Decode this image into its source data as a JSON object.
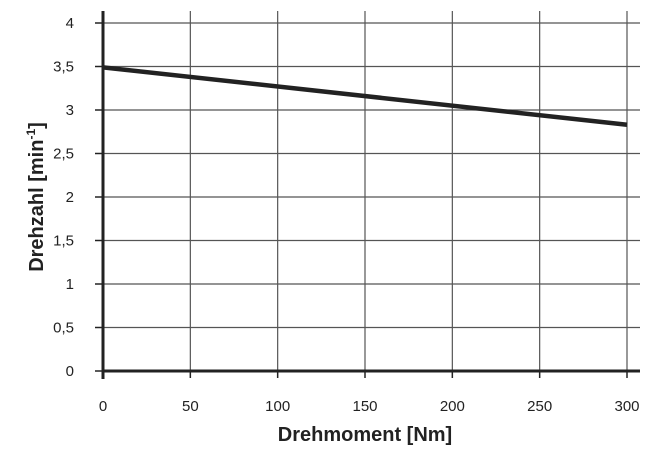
{
  "chart_data": {
    "type": "line",
    "title": "",
    "xlabel": "Drehmoment [Nm]",
    "ylabel": "Drehzahl [min",
    "ylabel_sup": "-1",
    "ylabel_close": "]",
    "xlim": [
      0,
      300
    ],
    "ylim": [
      0,
      4
    ],
    "xticks": [
      0,
      50,
      100,
      150,
      200,
      250,
      300
    ],
    "xtick_labels": [
      "0",
      "50",
      "100",
      "150",
      "200",
      "250",
      "300"
    ],
    "yticks": [
      0,
      0.5,
      1,
      1.5,
      2,
      2.5,
      3,
      3.5,
      4
    ],
    "ytick_labels": [
      "0",
      "0,5",
      "1",
      "1,5",
      "2",
      "2,5",
      "3",
      "3,5",
      "4"
    ],
    "grid": true,
    "series": [
      {
        "x": [
          0,
          300
        ],
        "y": [
          3.49,
          2.83
        ]
      }
    ],
    "colors": {
      "line": "#222222",
      "grid": "#555555",
      "axis": "#222222"
    }
  }
}
